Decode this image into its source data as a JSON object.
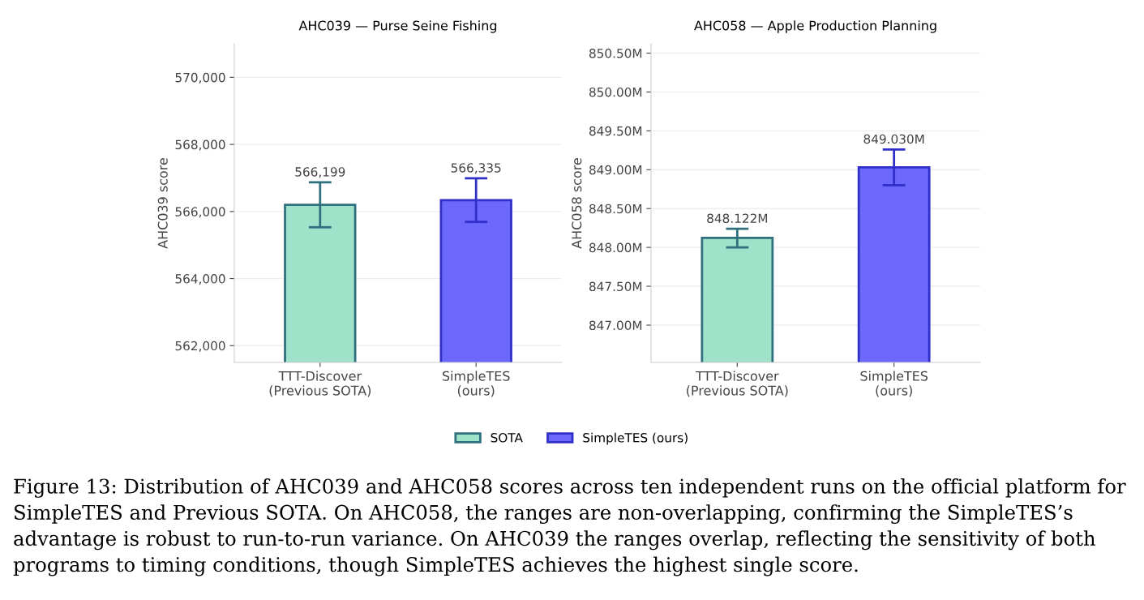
{
  "chart_data": [
    {
      "type": "bar",
      "title": "AHC039 — Purse Seine Fishing",
      "ylabel": "AHC039 score",
      "categories": [
        "TTT-Discover\n(Previous SOTA)",
        "SimpleTES\n(ours)"
      ],
      "series": [
        {
          "name": "SOTA",
          "color": "#a0e1ca",
          "values": [
            566199,
            null
          ],
          "errors": [
            [
              565530,
              566870
            ],
            null
          ],
          "value_labels": [
            "566,199",
            null
          ]
        },
        {
          "name": "SimpleTES (ours)",
          "color": "#6b68fb",
          "values": [
            null,
            566335
          ],
          "errors": [
            null,
            [
              565690,
              566990
            ]
          ],
          "value_labels": [
            null,
            "566,335"
          ]
        }
      ],
      "ylim": [
        561500,
        571000
      ],
      "yticks": [
        {
          "value": 562000,
          "label": "562,000"
        },
        {
          "value": 564000,
          "label": "564,000"
        },
        {
          "value": 566000,
          "label": "566,000"
        },
        {
          "value": 568000,
          "label": "568,000"
        },
        {
          "value": 570000,
          "label": "570,000"
        }
      ],
      "grid": "y",
      "legend": "bottom",
      "annotations": [
        "Figure 13: Distribution of AHC039 and AHC058 scores across ten independent runs on the official platform for SimpleTES and Previous SOTA. On AHC058, the ranges are non-overlapping, confirming the SimpleTES’s advantage is robust to run-to-run variance. On AHC039 the ranges overlap, reflecting the sensitivity of both programs to timing conditions, though SimpleTES achieves the highest single score."
      ]
    },
    {
      "type": "bar",
      "title": "AHC058 — Apple Production Planning",
      "ylabel": "AHC058 score",
      "categories": [
        "TTT-Discover\n(Previous SOTA)",
        "SimpleTES\n(ours)"
      ],
      "series": [
        {
          "name": "SOTA",
          "color": "#a0e1ca",
          "values": [
            848.122,
            null
          ],
          "errors": [
            [
              848.0,
              848.24
            ],
            null
          ],
          "value_labels": [
            "848.122M",
            null
          ]
        },
        {
          "name": "SimpleTES (ours)",
          "color": "#6b68fb",
          "values": [
            null,
            849.03
          ],
          "errors": [
            null,
            [
              848.8,
              849.26
            ]
          ],
          "value_labels": [
            null,
            "849.030M"
          ]
        }
      ],
      "ylim": [
        846.52,
        850.62
      ],
      "yticks": [
        {
          "value": 847.0,
          "label": "847.00M"
        },
        {
          "value": 847.5,
          "label": "847.50M"
        },
        {
          "value": 848.0,
          "label": "848.00M"
        },
        {
          "value": 848.5,
          "label": "848.50M"
        },
        {
          "value": 849.0,
          "label": "849.00M"
        },
        {
          "value": 849.5,
          "label": "849.50M"
        },
        {
          "value": 850.0,
          "label": "850.00M"
        },
        {
          "value": 850.5,
          "label": "850.50M"
        }
      ],
      "grid": "y"
    }
  ]
}
